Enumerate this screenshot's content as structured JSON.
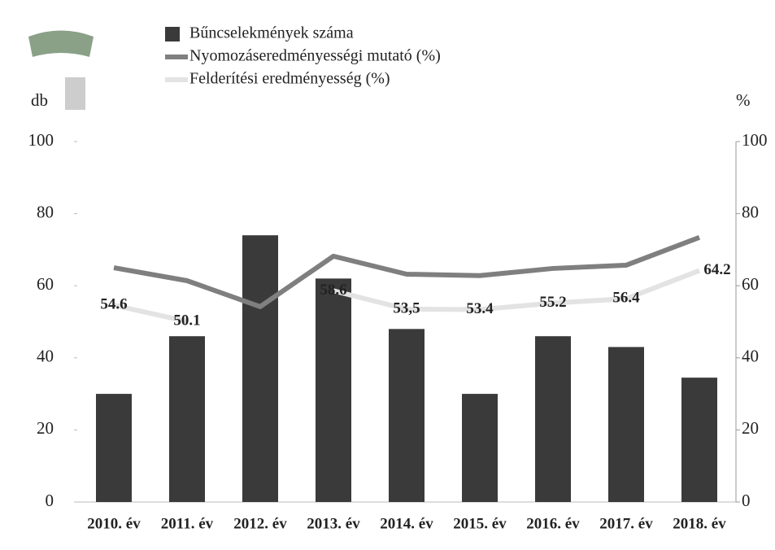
{
  "chart_data": {
    "type": "bar-line",
    "y_label": "db",
    "y2_label": "%",
    "categories": [
      "2010. év",
      "2011. év",
      "2012. év",
      "2013. év",
      "2014. év",
      "2015. év",
      "2016. év",
      "2017. év",
      "2018. év"
    ],
    "series": [
      {
        "name": "Bűncselekmények száma",
        "type": "bar",
        "color": "#3a3a3a",
        "values": [
          30,
          46,
          74,
          62,
          48,
          30,
          46,
          43,
          34.5
        ]
      },
      {
        "name": "Nyomozáseredményességi mutató (%)",
        "type": "line",
        "axis": "y2",
        "color": "#7f7f7f",
        "values": [
          65,
          61.4,
          54.2,
          68.2,
          63.2,
          62.8,
          64.8,
          65.7,
          73.4
        ]
      },
      {
        "name": "Felderítési eredményesség (%)",
        "type": "line",
        "axis": "y2",
        "color": "#e3e3e3",
        "values": [
          54.6,
          50.1,
          null,
          58.6,
          53.5,
          53.4,
          55.2,
          56.4,
          64.2
        ],
        "value_labels": [
          "54.6",
          "50.1",
          null,
          "58.6",
          "53,5",
          "53.4",
          "55.2",
          "56.4",
          "64.2"
        ]
      }
    ],
    "ylim": [
      0,
      100
    ],
    "yticks": [
      0,
      20,
      40,
      60,
      80,
      100
    ],
    "y2lim": [
      0,
      100
    ],
    "y2ticks": [
      0,
      20,
      40,
      60,
      80,
      100
    ]
  }
}
